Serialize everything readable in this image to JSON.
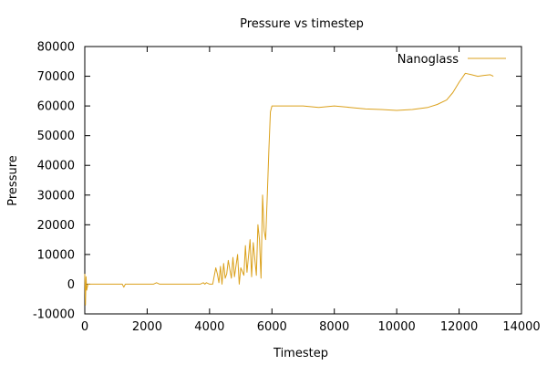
{
  "chart_data": {
    "type": "line",
    "title": "Pressure vs timestep",
    "xlabel": "Timestep",
    "ylabel": "Pressure",
    "xlim": [
      0,
      14000
    ],
    "ylim": [
      -10000,
      80000
    ],
    "xticks": [
      0,
      2000,
      4000,
      6000,
      8000,
      10000,
      12000,
      14000
    ],
    "yticks": [
      -10000,
      0,
      10000,
      20000,
      30000,
      40000,
      50000,
      60000,
      70000,
      80000
    ],
    "grid": false,
    "legend": "top-right",
    "series": [
      {
        "name": "Nanoglass",
        "color": "#dba11c",
        "x": [
          0,
          20,
          40,
          60,
          100,
          200,
          400,
          600,
          800,
          1000,
          1200,
          1250,
          1300,
          1400,
          1600,
          1800,
          2000,
          2200,
          2300,
          2400,
          2500,
          2700,
          2900,
          3100,
          3300,
          3500,
          3700,
          3800,
          3850,
          3900,
          4000,
          4100,
          4200,
          4250,
          4300,
          4350,
          4400,
          4450,
          4500,
          4550,
          4600,
          4700,
          4750,
          4800,
          4900,
          4950,
          5000,
          5100,
          5150,
          5200,
          5300,
          5350,
          5400,
          5500,
          5550,
          5600,
          5650,
          5700,
          5750,
          5800,
          5850,
          5900,
          5950,
          6000,
          6050,
          6200,
          6500,
          7000,
          7500,
          8000,
          8500,
          9000,
          9500,
          10000,
          10500,
          11000,
          11300,
          11600,
          11800,
          12000,
          12200,
          12400,
          12600,
          12800,
          13000,
          13100
        ],
        "y": [
          3500,
          -7000,
          2500,
          -2000,
          0,
          0,
          0,
          0,
          0,
          0,
          0,
          -1000,
          0,
          0,
          0,
          0,
          0,
          0,
          500,
          0,
          0,
          0,
          0,
          0,
          0,
          0,
          0,
          500,
          0,
          500,
          0,
          0,
          5500,
          3500,
          500,
          6000,
          0,
          7000,
          2000,
          3500,
          8000,
          2000,
          9000,
          2500,
          10000,
          0,
          5500,
          3000,
          13000,
          4000,
          15000,
          2500,
          14000,
          3000,
          20000,
          15000,
          2000,
          30000,
          18000,
          15000,
          30000,
          45000,
          58000,
          60000,
          60000,
          60000,
          60000,
          60000,
          59500,
          60000,
          59500,
          59000,
          58800,
          58500,
          58800,
          59500,
          60500,
          62000,
          64500,
          68000,
          71000,
          70500,
          70000,
          70300,
          70500,
          70000
        ]
      }
    ]
  }
}
